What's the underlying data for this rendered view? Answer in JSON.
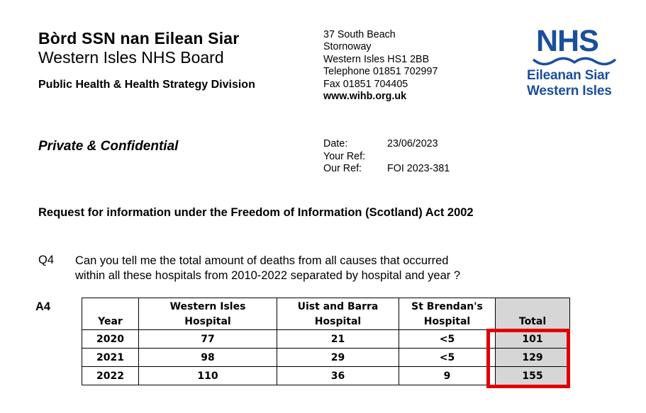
{
  "header": {
    "board_gaelic": "Bòrd SSN nan Eilean Siar",
    "board_english": "Western Isles NHS Board",
    "division": "Public Health & Health Strategy Division",
    "address_lines": [
      "37 South Beach",
      "Stornoway",
      "Western Isles HS1 2BB",
      "Telephone 01851 702997",
      "Fax 01851 704405"
    ],
    "website": "www.wihb.org.uk",
    "logo": {
      "mark": "NHS",
      "line1": "Eileanan Siar",
      "line2": "Western Isles",
      "color": "#1b4f9c"
    }
  },
  "letter": {
    "classification": "Private & Confidential",
    "date_label": "Date:",
    "date_value": "23/06/2023",
    "your_ref_label": "Your Ref:",
    "your_ref_value": "",
    "our_ref_label": "Our Ref:",
    "our_ref_value": "FOI 2023-381",
    "request_title": "Request for information under the Freedom of Information (Scotland) Act 2002"
  },
  "question": {
    "label": "Q4",
    "text_line1": "Can you tell me the total amount of deaths from all causes that occurred",
    "text_line2": "within all these hospitals from 2010-2022 separated by hospital and year ?"
  },
  "answer": {
    "label": "A4",
    "table": {
      "headers": [
        {
          "line1": "",
          "line2": "Year"
        },
        {
          "line1": "Western Isles",
          "line2": "Hospital"
        },
        {
          "line1": "Uist and Barra",
          "line2": "Hospital"
        },
        {
          "line1": "St Brendan's",
          "line2": "Hospital"
        },
        {
          "line1": "",
          "line2": "Total"
        }
      ],
      "rows": [
        {
          "year": "2020",
          "western_isles": "77",
          "uist_barra": "21",
          "st_brendans": "<5",
          "total": "101"
        },
        {
          "year": "2021",
          "western_isles": "98",
          "uist_barra": "29",
          "st_brendans": "<5",
          "total": "129"
        },
        {
          "year": "2022",
          "western_isles": "110",
          "uist_barra": "36",
          "st_brendans": "9",
          "total": "155"
        }
      ]
    },
    "highlight_color": "#e00000"
  }
}
